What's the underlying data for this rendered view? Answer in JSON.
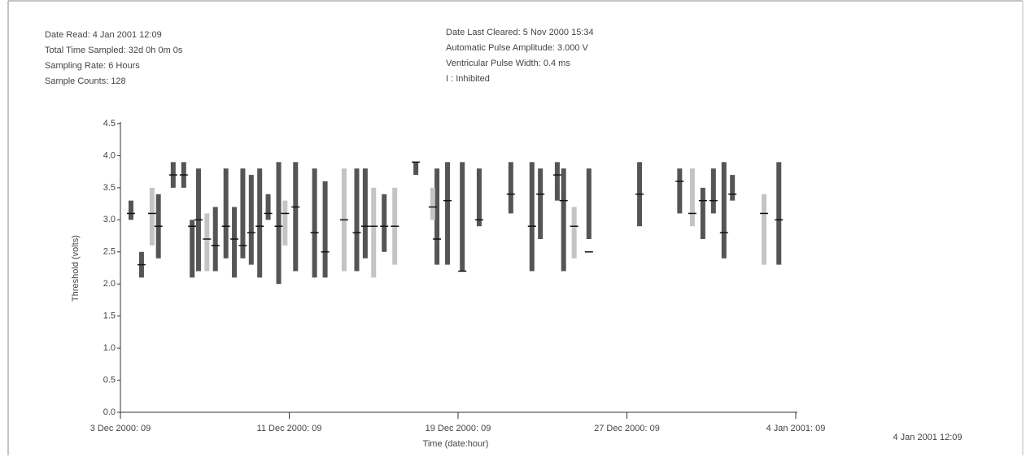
{
  "header": {
    "left": [
      "Date Read:   4 Jan 2001 12:09",
      "Total Time Sampled:   32d 0h 0m 0s",
      "Sampling Rate:   6 Hours",
      "Sample Counts:   128"
    ],
    "right": [
      "Date Last Cleared:   5 Nov 2000 15:34",
      "Automatic Pulse Amplitude:   3.000 V",
      "Ventricular Pulse Width:   0.4 ms",
      "I : Inhibited"
    ]
  },
  "footer_timestamp": "4 Jan 2001 12:09",
  "chart_data": {
    "type": "range",
    "y_label": "Threshold (volts)",
    "x_label": "Time (date:hour)",
    "xlim": [
      0,
      32
    ],
    "xticks": [
      {
        "value": 0,
        "label": "3 Dec 2000: 09"
      },
      {
        "value": 8,
        "label": "11 Dec 2000: 09"
      },
      {
        "value": 16,
        "label": "19 Dec 2000: 09"
      },
      {
        "value": 24,
        "label": "27 Dec 2000: 09"
      },
      {
        "value": 32,
        "label": "4 Jan 2001: 09"
      }
    ],
    "ylim": [
      0,
      4.5
    ],
    "yticks": [
      {
        "value": 0,
        "label": "0.0"
      },
      {
        "value": 0.5,
        "label": "0.5"
      },
      {
        "value": 1,
        "label": "1.0"
      },
      {
        "value": 1.5,
        "label": "1.5"
      },
      {
        "value": 2,
        "label": "2.0"
      },
      {
        "value": 2.5,
        "label": "2.5"
      },
      {
        "value": 3,
        "label": "3.0"
      },
      {
        "value": 3.5,
        "label": "3.5"
      },
      {
        "value": 4,
        "label": "4.0"
      },
      {
        "value": 4.5,
        "label": "4.5"
      }
    ],
    "series": [
      {
        "color": "#555555",
        "x": [
          0.5,
          1.0,
          1.8,
          2.5,
          3.0,
          3.4,
          3.7,
          4.5,
          5.0,
          5.4,
          5.8,
          6.2,
          6.6,
          7.0,
          7.5,
          8.3,
          9.2,
          9.7,
          11.2,
          11.6,
          12.5,
          14.0,
          15.0,
          15.5,
          16.2,
          17.0,
          18.5,
          19.5,
          19.9,
          20.7,
          21.0,
          22.2,
          24.6,
          26.5,
          27.6,
          28.1,
          28.6,
          29.0,
          31.2
        ],
        "low": [
          3.0,
          2.1,
          2.4,
          3.5,
          3.5,
          2.1,
          2.2,
          2.2,
          2.4,
          2.1,
          2.4,
          2.3,
          2.1,
          3.0,
          2.0,
          2.2,
          2.1,
          2.1,
          2.2,
          2.4,
          2.5,
          3.7,
          2.3,
          2.3,
          2.2,
          2.9,
          3.1,
          2.2,
          2.7,
          3.3,
          2.2,
          2.7,
          2.9,
          3.1,
          2.7,
          3.1,
          2.4,
          3.3,
          2.3
        ],
        "high": [
          3.3,
          2.5,
          3.4,
          3.9,
          3.9,
          3.0,
          3.8,
          3.2,
          3.8,
          3.2,
          3.8,
          3.7,
          3.8,
          3.4,
          3.9,
          3.9,
          3.8,
          3.6,
          3.8,
          3.8,
          3.4,
          3.9,
          3.8,
          3.9,
          3.9,
          3.8,
          3.9,
          3.9,
          3.8,
          3.9,
          3.8,
          3.8,
          3.9,
          3.8,
          3.5,
          3.8,
          3.9,
          3.7,
          3.9
        ],
        "mid": [
          3.1,
          2.3,
          2.9,
          3.7,
          3.7,
          2.9,
          3.0,
          2.6,
          2.9,
          2.7,
          2.6,
          2.8,
          2.9,
          3.1,
          2.9,
          3.2,
          2.8,
          2.5,
          2.8,
          2.9,
          2.9,
          3.9,
          2.7,
          3.3,
          2.2,
          3.0,
          3.4,
          2.9,
          3.4,
          3.7,
          3.3,
          2.5,
          3.4,
          3.6,
          3.3,
          3.3,
          2.8,
          3.4,
          3.0
        ]
      },
      {
        "color": "#c4c4c4",
        "x": [
          1.5,
          4.1,
          7.8,
          10.6,
          12.0,
          13.0,
          14.8,
          21.5,
          27.1,
          30.5
        ],
        "low": [
          2.6,
          2.2,
          2.6,
          2.2,
          2.1,
          2.3,
          3.0,
          2.4,
          2.9,
          2.3
        ],
        "high": [
          3.5,
          3.1,
          3.3,
          3.8,
          3.5,
          3.5,
          3.5,
          3.2,
          3.8,
          3.4
        ],
        "mid": [
          3.1,
          2.7,
          3.1,
          3.0,
          2.9,
          2.9,
          3.2,
          2.9,
          3.1,
          3.1
        ]
      }
    ]
  }
}
